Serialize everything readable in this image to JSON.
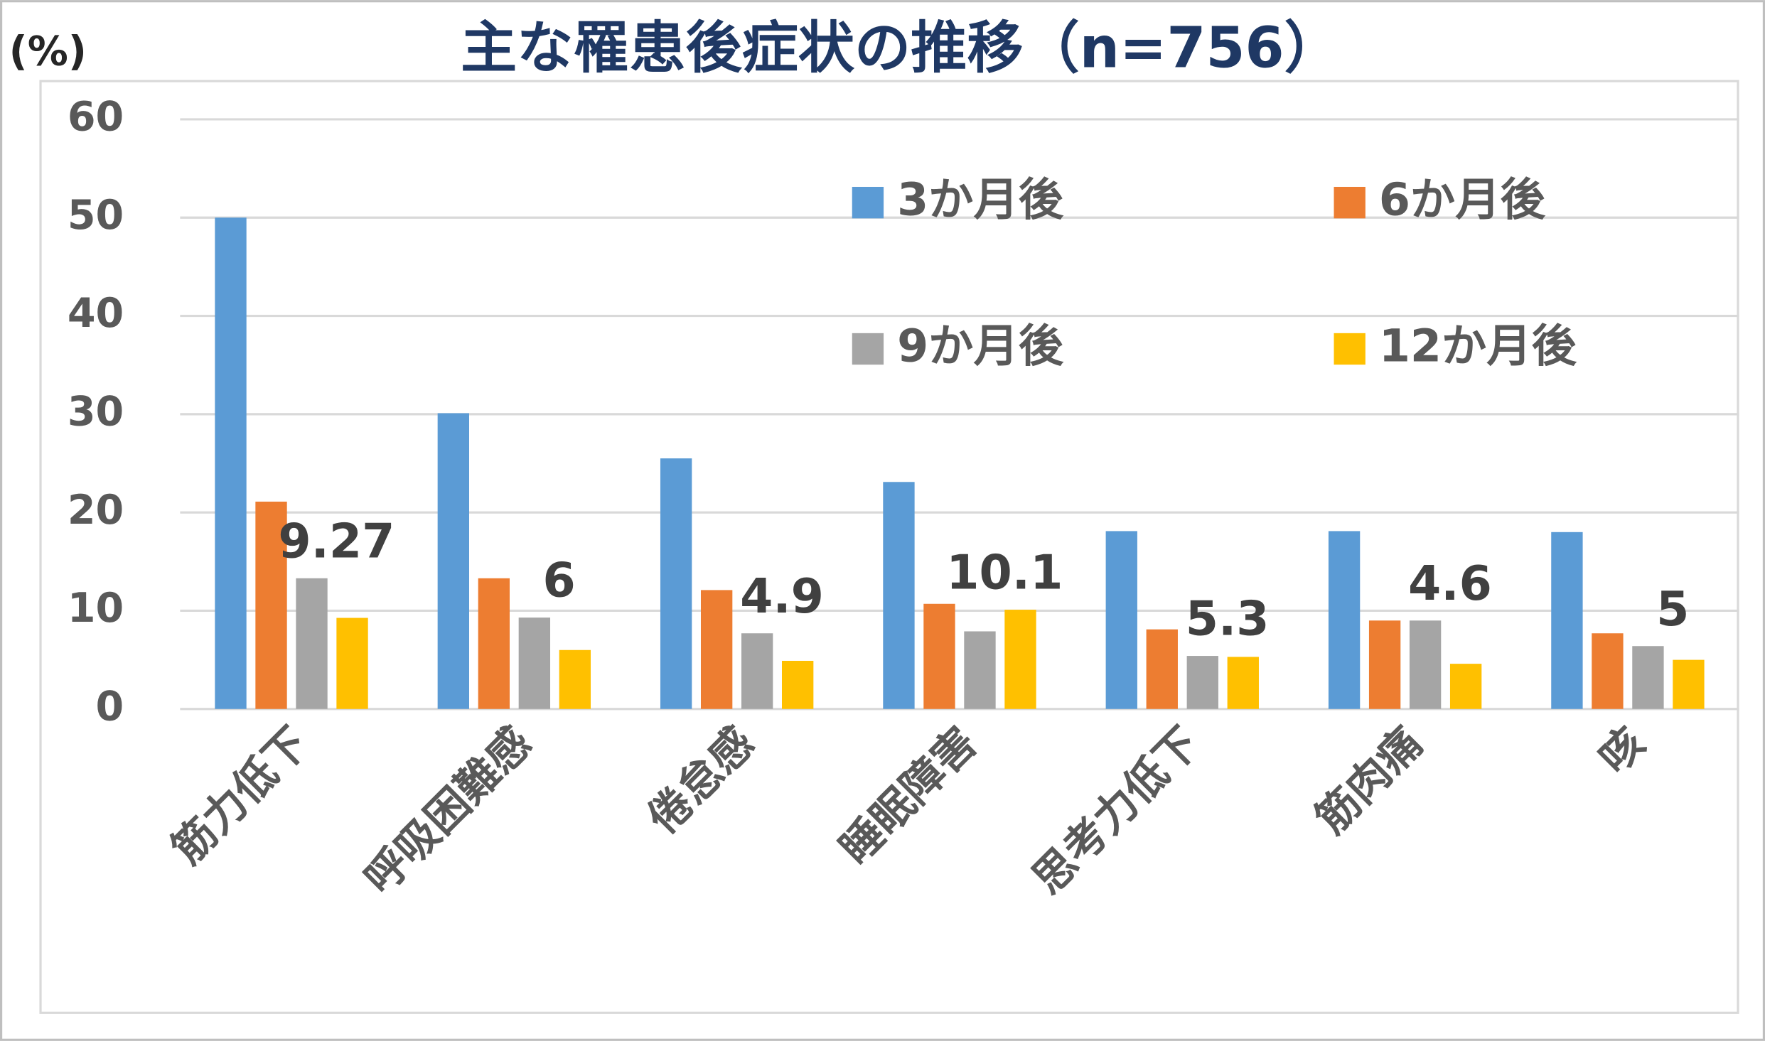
{
  "chart_data": {
    "type": "bar",
    "title": "主な罹患後症状の推移（n=756）",
    "y_label": "(%)",
    "categories": [
      "筋力低下",
      "呼吸困難感",
      "倦怠感",
      "睡眠障害",
      "思考力低下",
      "筋肉痛",
      "咳"
    ],
    "series": [
      {
        "name": "3か月後",
        "color": "#5b9bd5",
        "values": [
          50.0,
          30.1,
          25.5,
          23.1,
          18.1,
          18.1,
          18.0
        ]
      },
      {
        "name": "6か月後",
        "color": "#ed7d31",
        "values": [
          21.1,
          13.3,
          12.1,
          10.7,
          8.1,
          9.0,
          7.7
        ]
      },
      {
        "name": "9か月後",
        "color": "#a5a5a5",
        "values": [
          13.3,
          9.3,
          7.7,
          7.9,
          5.4,
          9.0,
          6.4
        ]
      },
      {
        "name": "12か月後",
        "color": "#ffc000",
        "values": [
          9.27,
          6,
          4.9,
          10.1,
          5.3,
          4.6,
          5
        ],
        "show_labels": true
      }
    ],
    "ylim": [
      0,
      60
    ],
    "yticks": [
      0,
      10,
      20,
      30,
      40,
      50,
      60
    ],
    "grid": true,
    "legend_position": "upper right"
  }
}
